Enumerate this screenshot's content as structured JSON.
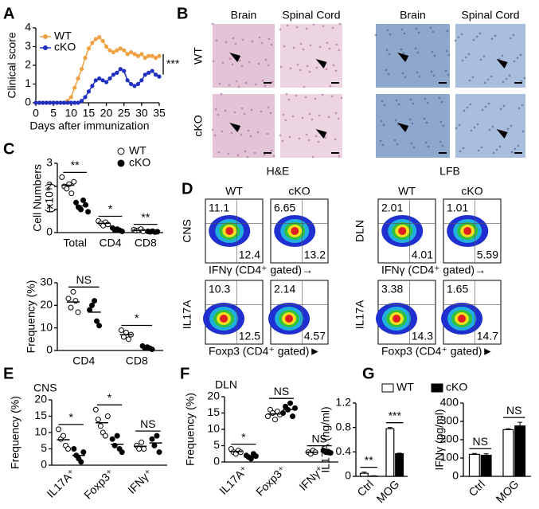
{
  "panel_labels": [
    "A",
    "B",
    "C",
    "D",
    "E",
    "F",
    "G"
  ],
  "histology": {
    "columns": [
      "Brain",
      "Spinal Cord",
      "Brain",
      "Spinal Cord"
    ],
    "rows": [
      "WT",
      "cKO"
    ],
    "stains": [
      "H&E",
      "LFB"
    ]
  },
  "flow": {
    "groups": [
      {
        "name": "CNS",
        "y_label": "IL17A",
        "columns": [
          "WT",
          "cKO"
        ],
        "rows": [
          {
            "x_label": "IFNγ (CD4⁺ gated)→",
            "quadrants": [
              [
                11.1,
                12.4
              ],
              [
                6.65,
                13.2
              ]
            ]
          },
          {
            "x_label": "Foxp3 (CD4⁺ gated)►",
            "quadrants": [
              [
                10.3,
                12.5
              ],
              [
                2.14,
                4.57
              ]
            ]
          }
        ]
      },
      {
        "name": "DLN",
        "y_label": "IL17A",
        "columns": [
          "WT",
          "cKO"
        ],
        "rows": [
          {
            "x_label": "IFNγ (CD4⁺ gated)→",
            "quadrants": [
              [
                2.01,
                4.01
              ],
              [
                1.01,
                5.59
              ]
            ]
          },
          {
            "x_label": "Foxp3 (CD4⁺ gated)►",
            "quadrants": [
              [
                3.38,
                14.3
              ],
              [
                1.65,
                14.7
              ]
            ]
          }
        ]
      }
    ]
  },
  "chart_data": [
    {
      "type": "line",
      "y_label": "Clinical score",
      "x_label": "Days after immunization",
      "annotation": "***",
      "x": [
        0,
        1,
        2,
        3,
        4,
        5,
        6,
        7,
        8,
        9,
        10,
        11,
        12,
        13,
        14,
        15,
        16,
        17,
        18,
        19,
        20,
        21,
        22,
        23,
        24,
        25,
        26,
        27,
        28,
        29,
        30,
        31,
        32,
        33,
        34,
        35
      ],
      "xlim": [
        0,
        35
      ],
      "xticks": [
        0,
        5,
        10,
        15,
        20,
        25,
        30,
        35
      ],
      "ylim": [
        0,
        4
      ],
      "yticks": [
        0,
        1,
        2,
        3,
        4
      ],
      "series": [
        {
          "name": "WT",
          "color": "#f0a040",
          "values": [
            0,
            0,
            0,
            0,
            0,
            0,
            0,
            0,
            0,
            0.1,
            0.3,
            0.8,
            1.3,
            1.8,
            2.4,
            2.9,
            3.2,
            3.4,
            3.5,
            3.3,
            3.0,
            2.8,
            2.7,
            2.8,
            2.9,
            2.8,
            2.6,
            2.7,
            2.6,
            2.5,
            2.6,
            2.4,
            2.5,
            2.5,
            2.4,
            2.5
          ]
        },
        {
          "name": "cKO",
          "color": "#2030c0",
          "values": [
            0,
            0,
            0,
            0,
            0,
            0,
            0,
            0,
            0,
            0,
            0,
            0,
            0,
            0.1,
            0.3,
            0.6,
            0.9,
            1.2,
            1.3,
            1.2,
            1.1,
            1.3,
            1.5,
            1.6,
            1.8,
            1.7,
            1.2,
            1.0,
            0.9,
            1.0,
            1.2,
            1.5,
            1.6,
            1.7,
            1.5,
            1.4
          ]
        }
      ]
    },
    {
      "type": "dot",
      "y_label": [
        "Cell Numbers",
        "(x10⁶)"
      ],
      "categories": [
        "Total",
        "CD4",
        "CD8"
      ],
      "ylim": [
        0,
        3
      ],
      "yticks": [
        0,
        1,
        2,
        3
      ],
      "annotations": [
        "**",
        "*",
        "**"
      ],
      "series": [
        {
          "name": "WT",
          "fill": "#fff",
          "points": [
            [
              2.4,
              2.0,
              1.9,
              2.1,
              1.7,
              2.2
            ],
            [
              0.5,
              0.4,
              0.3,
              0.45,
              0.35
            ],
            [
              0.12,
              0.08,
              0.1,
              0.15,
              0.05
            ]
          ],
          "means": [
            2.05,
            0.4,
            0.1
          ]
        },
        {
          "name": "cKO",
          "fill": "#000",
          "points": [
            [
              1.3,
              1.1,
              1.0,
              1.4,
              1.2,
              0.9
            ],
            [
              0.2,
              0.1,
              0.15,
              0.1,
              0.05
            ],
            [
              0.05,
              0.03,
              0.06,
              0.02,
              0.04
            ]
          ],
          "means": [
            1.15,
            0.12,
            0.04
          ]
        }
      ]
    },
    {
      "type": "dot",
      "y_label": [
        "Frequency (%)"
      ],
      "categories": [
        "CD4",
        "CD8"
      ],
      "ylim": [
        0,
        30
      ],
      "yticks": [
        0,
        10,
        20,
        30
      ],
      "annotations": [
        "NS",
        "*"
      ],
      "series": [
        {
          "fill": "#fff",
          "points": [
            [
              23,
              19,
              26,
              22,
              17
            ],
            [
              9,
              6,
              8,
              5,
              7
            ]
          ],
          "means": [
            21.5,
            7
          ]
        },
        {
          "fill": "#000",
          "points": [
            [
              18,
              20,
              22,
              13,
              11
            ],
            [
              2,
              1,
              1.5,
              1,
              0.5
            ]
          ],
          "means": [
            17,
            1.2
          ]
        }
      ]
    },
    {
      "type": "dot",
      "title": "CNS",
      "y_label": [
        "Frequency (%)"
      ],
      "categories": [
        "IL17A⁺",
        "Foxp3⁺",
        "IFNγ⁺"
      ],
      "ylim": [
        0,
        20
      ],
      "yticks": [
        0,
        5,
        10,
        15,
        20
      ],
      "annotations": [
        "*",
        "*",
        "NS"
      ],
      "series": [
        {
          "fill": "#fff",
          "points": [
            [
              11,
              8,
              9,
              6,
              5
            ],
            [
              17,
              14,
              12,
              10,
              9,
              15
            ],
            [
              6,
              5,
              7,
              5
            ]
          ],
          "means": [
            7.8,
            13,
            5.8
          ]
        },
        {
          "fill": "#000",
          "points": [
            [
              5,
              3,
              2,
              1,
              4
            ],
            [
              8,
              6,
              9,
              5,
              4
            ],
            [
              8,
              6,
              9,
              4
            ]
          ],
          "means": [
            3,
            6.4,
            6.8
          ]
        }
      ]
    },
    {
      "type": "dot",
      "title": "DLN",
      "y_label": [
        "Frequency (%)"
      ],
      "categories": [
        "IL17A⁺",
        "Foxp3⁺",
        "IFNγ⁺"
      ],
      "ylim": [
        0,
        20
      ],
      "yticks": [
        0,
        5,
        10,
        15,
        20
      ],
      "annotations": [
        "*",
        "NS",
        "NS"
      ],
      "series": [
        {
          "fill": "#fff",
          "points": [
            [
              4,
              3,
              2.5,
              3.5,
              3
            ],
            [
              14,
              16,
              15,
              13,
              15.5,
              14.5
            ],
            [
              3,
              2.5,
              3.5,
              3
            ]
          ],
          "means": [
            3.2,
            14.7,
            3
          ]
        },
        {
          "fill": "#000",
          "points": [
            [
              2,
              1.5,
              1,
              2.5,
              1.8
            ],
            [
              15,
              17,
              16,
              18,
              14,
              16.5
            ],
            [
              3.5,
              3,
              3.2,
              2.8
            ]
          ],
          "means": [
            1.8,
            16.1,
            3.1
          ]
        }
      ]
    },
    {
      "type": "bar",
      "y_label": [
        "IL17A (ng/ml)"
      ],
      "categories": [
        "Ctrl",
        "MOG"
      ],
      "ylim": [
        0,
        1.2
      ],
      "yticks": [
        0,
        0.4,
        0.8,
        1.2
      ],
      "annotations": [
        "**",
        "***"
      ],
      "series": [
        {
          "name": "WT",
          "fill": "#fff",
          "values": [
            0.05,
            0.78
          ],
          "errors": [
            0.02,
            0.02
          ]
        },
        {
          "name": "cKO",
          "fill": "#000",
          "values": [
            0.005,
            0.37
          ],
          "errors": [
            0.005,
            0.01
          ]
        }
      ]
    },
    {
      "type": "bar",
      "y_label": [
        "IFNγ (pg/ml)"
      ],
      "categories": [
        "Ctrl",
        "MOG"
      ],
      "ylim": [
        0,
        400
      ],
      "yticks": [
        0,
        100,
        200,
        300,
        400
      ],
      "annotations": [
        "NS",
        "NS"
      ],
      "series": [
        {
          "fill": "#fff",
          "values": [
            120,
            255
          ],
          "errors": [
            5,
            5
          ]
        },
        {
          "fill": "#000",
          "values": [
            115,
            275
          ],
          "errors": [
            8,
            20
          ]
        }
      ]
    }
  ]
}
